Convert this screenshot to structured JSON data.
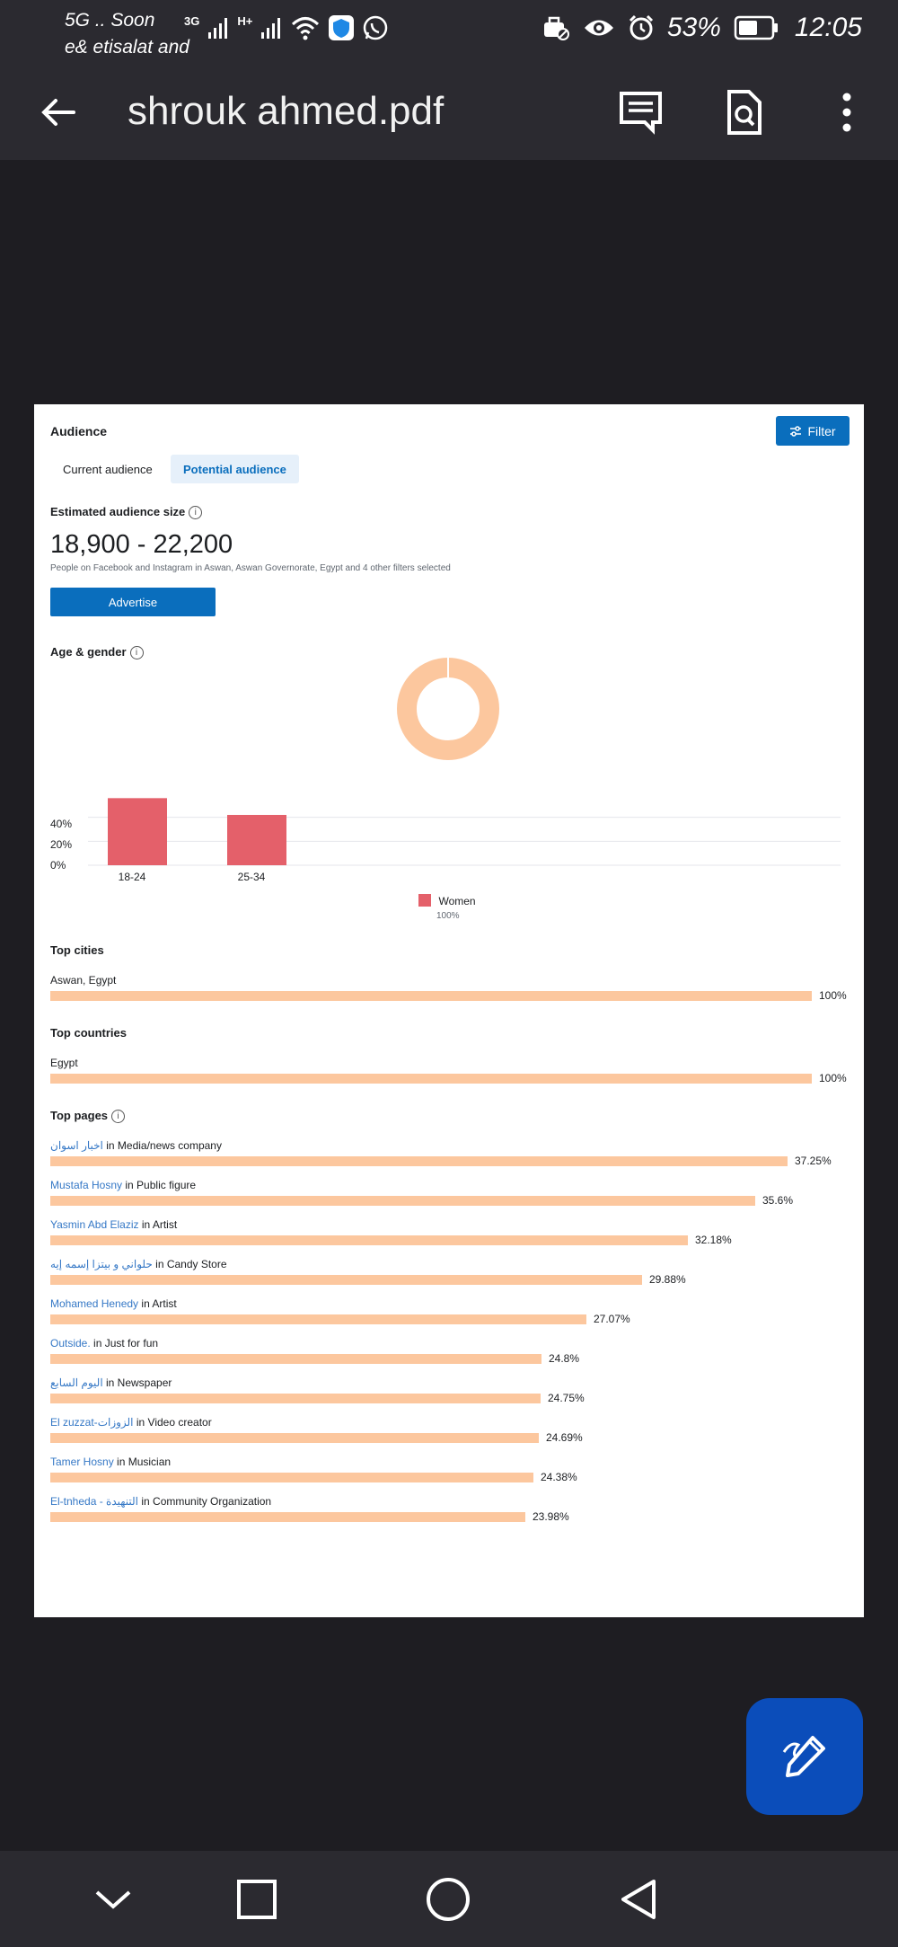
{
  "status_bar": {
    "carrier_line1": "5G .. Soon",
    "carrier_line2": "e& etisalat and",
    "network_3g": "3G",
    "network_h": "H+",
    "battery": "53%",
    "time": "12:05"
  },
  "app_bar": {
    "title": "shrouk ahmed.pdf"
  },
  "page": {
    "audience_title": "Audience",
    "filter_label": "Filter",
    "tabs": {
      "current": "Current audience",
      "potential": "Potential audience"
    },
    "estimated_title": "Estimated audience size",
    "estimated_range": "18,900 - 22,200",
    "estimated_desc": "People on Facebook and Instagram in Aswan, Aswan Governorate, Egypt and 4 other filters selected",
    "advertise_label": "Advertise",
    "age_gender_title": "Age & gender",
    "chart_data": {
      "type": "bar",
      "title": "Age & gender",
      "categories": [
        "18-24",
        "25-34"
      ],
      "series": [
        {
          "name": "Women",
          "values": [
            56,
            42
          ]
        }
      ],
      "y_ticks": [
        "40%",
        "20%",
        "0%"
      ],
      "ylim": [
        0,
        60
      ],
      "legend": {
        "label": "Women",
        "share": "100%"
      },
      "donut": {
        "women_share": 100
      },
      "colors": {
        "bar": "#e4606a",
        "donut": "#fcc79e"
      }
    },
    "top_cities": {
      "title": "Top cities",
      "items": [
        {
          "name": "Aswan, Egypt",
          "percent": 100,
          "label": "100%"
        }
      ]
    },
    "top_countries": {
      "title": "Top countries",
      "items": [
        {
          "name": "Egypt",
          "percent": 100,
          "label": "100%"
        }
      ]
    },
    "top_pages": {
      "title": "Top pages",
      "items": [
        {
          "name": "اخبار اسوان",
          "category": " in Media/news company",
          "percent": 37.25,
          "label": "37.25%"
        },
        {
          "name": "Mustafa Hosny",
          "category": " in Public figure",
          "percent": 35.6,
          "label": "35.6%"
        },
        {
          "name": "Yasmin Abd Elaziz",
          "category": " in Artist",
          "percent": 32.18,
          "label": "32.18%"
        },
        {
          "name": "حلواني و بيتزا إسمه إيه",
          "category": " in Candy Store",
          "percent": 29.88,
          "label": "29.88%"
        },
        {
          "name": "Mohamed Henedy",
          "category": " in Artist",
          "percent": 27.07,
          "label": "27.07%"
        },
        {
          "name": "Outside.",
          "category": " in Just for fun",
          "percent": 24.8,
          "label": "24.8%"
        },
        {
          "name": "اليوم السابع",
          "category": " in Newspaper",
          "percent": 24.75,
          "label": "24.75%"
        },
        {
          "name": "El zuzzat-الزوزات",
          "category": " in Video creator",
          "percent": 24.69,
          "label": "24.69%"
        },
        {
          "name": "Tamer Hosny",
          "category": " in Musician",
          "percent": 24.38,
          "label": "24.38%"
        },
        {
          "name": "El-tnheda - التنهيدة",
          "category": " in Community Organization",
          "percent": 23.98,
          "label": "23.98%"
        }
      ]
    }
  }
}
